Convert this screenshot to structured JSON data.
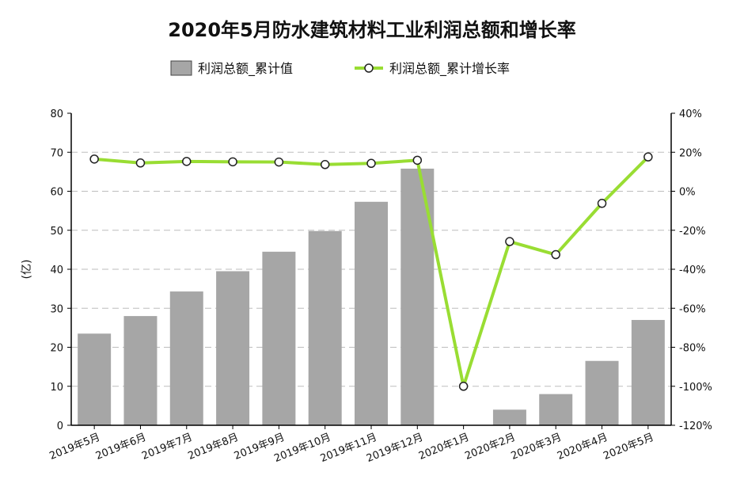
{
  "chart_data": {
    "type": "bar",
    "title": "2020年5月防水建筑材料工业利润总额和增长率",
    "ylabel": "(亿)",
    "ylim": [
      0,
      80
    ],
    "yticks": [
      "0",
      "10",
      "20",
      "30",
      "40",
      "50",
      "60",
      "70",
      "80"
    ],
    "y2lim": [
      -120,
      40
    ],
    "y2ticks": [
      "-120%",
      "-100%",
      "-80%",
      "-60%",
      "-40%",
      "-20%",
      "0%",
      "20%",
      "40%"
    ],
    "grid": true,
    "legend_position": "top-center",
    "categories": [
      "2019年5月",
      "2019年6月",
      "2019年7月",
      "2019年8月",
      "2019年9月",
      "2019年10月",
      "2019年11月",
      "2019年12月",
      "2020年1月",
      "2020年2月",
      "2020年3月",
      "2020年4月",
      "2020年5月"
    ],
    "series": [
      {
        "name": "利润总额_累计值",
        "type": "bar",
        "axis": "left",
        "color": "#a6a6a6",
        "values": [
          23.5,
          28,
          34.3,
          39.5,
          44.5,
          49.8,
          57.3,
          65.8,
          null,
          4,
          8,
          16.5,
          27
        ]
      },
      {
        "name": "利润总额_累计增长率",
        "type": "line",
        "axis": "right",
        "color": "#99dd33",
        "values": [
          16.5,
          14.5,
          15.3,
          15.1,
          15,
          13.7,
          14.3,
          15.9,
          -100,
          -25.8,
          -32.5,
          -6.2,
          17.6
        ]
      }
    ]
  }
}
